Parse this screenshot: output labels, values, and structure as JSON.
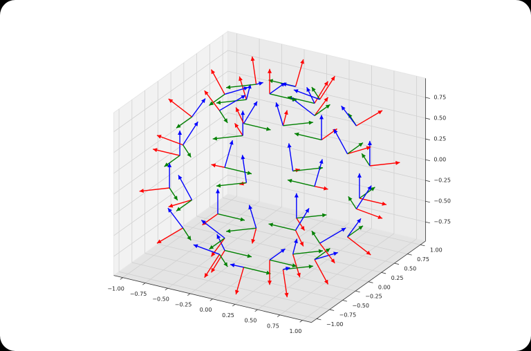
{
  "chart_data": {
    "type": "quiver3d",
    "x": [
      1,
      0.707,
      0,
      -0.707,
      -1,
      -0.707,
      0,
      0.707,
      0.866,
      0.612,
      0,
      -0.612,
      -0.866,
      -0.612,
      0,
      0.612,
      0.866,
      0.612,
      0,
      -0.612,
      -0.866,
      -0.612,
      0,
      0.612,
      0.5,
      0.354,
      0,
      -0.354,
      -0.5,
      -0.354,
      0,
      0.354,
      0.5,
      0.354,
      0,
      -0.354,
      -0.5,
      -0.354,
      0,
      0.354,
      0,
      0
    ],
    "y": [
      0,
      0.707,
      1,
      0.707,
      0,
      -0.707,
      -1,
      -0.707,
      0,
      0.612,
      0.866,
      0.612,
      0,
      -0.612,
      -0.866,
      -0.612,
      0,
      0.612,
      0.866,
      0.612,
      0,
      -0.612,
      -0.866,
      -0.612,
      0,
      0.354,
      0.5,
      0.354,
      0,
      -0.354,
      -0.5,
      -0.354,
      0,
      0.354,
      0.5,
      0.354,
      0,
      -0.354,
      -0.5,
      -0.354,
      0,
      0
    ],
    "z": [
      0,
      0,
      0,
      0,
      0,
      0,
      0,
      0,
      0.5,
      0.5,
      0.5,
      0.5,
      0.5,
      0.5,
      0.5,
      0.5,
      -0.5,
      -0.5,
      -0.5,
      -0.5,
      -0.5,
      -0.5,
      -0.5,
      -0.5,
      0.866,
      0.866,
      0.866,
      0.866,
      0.866,
      0.866,
      0.866,
      0.866,
      -0.866,
      -0.866,
      -0.866,
      -0.866,
      -0.866,
      -0.866,
      -0.866,
      -0.866,
      1,
      -1
    ],
    "series": [
      {
        "color": "#ff0000"
      },
      {
        "color": "#008000"
      },
      {
        "color": "#0000ff"
      }
    ],
    "xlim": [
      -1.1,
      1.1
    ],
    "ylim": [
      -1.1,
      1.1
    ],
    "zlim": [
      -0.98,
      0.98
    ],
    "xticks": [
      {
        "value": -1,
        "label": "−1.00"
      },
      {
        "value": -0.75,
        "label": "−0.75"
      },
      {
        "value": -0.5,
        "label": "−0.50"
      },
      {
        "value": -0.25,
        "label": "−0.25"
      },
      {
        "value": 0,
        "label": "0.00"
      },
      0.25,
      {
        "value": 0.5,
        "label": "0.50"
      },
      0.75,
      {
        "value": 1,
        "label": "1.00"
      }
    ],
    "yticks": [
      {
        "value": -1,
        "label": "−1.00"
      },
      {
        "value": -0.75,
        "label": "−0.75"
      },
      {
        "value": -0.5,
        "label": "−0.50"
      },
      {
        "value": -0.25,
        "label": "−0.25"
      },
      {
        "value": 0,
        "label": "0.00"
      },
      0.25,
      {
        "value": 0.5,
        "label": "0.50"
      },
      0.75,
      {
        "value": 1,
        "label": "1.00"
      }
    ],
    "zticks": [
      {
        "value": -0.75,
        "label": "−0.75"
      },
      {
        "value": -0.5,
        "label": "−0.50"
      },
      {
        "value": -0.25,
        "label": "−0.25"
      },
      {
        "value": 0,
        "label": "0.00"
      },
      0.25,
      {
        "value": 0.5,
        "label": "0.50"
      },
      0.75
    ],
    "grid": true
  }
}
